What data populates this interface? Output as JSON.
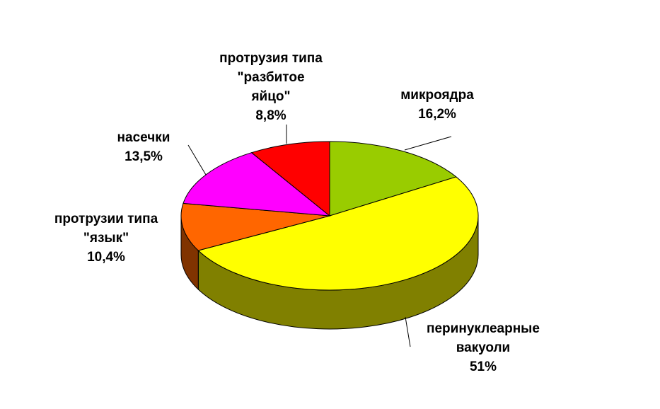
{
  "chart_data": {
    "type": "pie",
    "categories": [
      "микроядра",
      "перинуклеарные\nвакуоли",
      "протрузии типа\n\"язык\"",
      "насечки",
      "протрузия типа\n\"разбитое\nяйцо\""
    ],
    "values": [
      16.2,
      51,
      10.4,
      13.5,
      8.8
    ],
    "value_labels": [
      "16,2%",
      "51%",
      "10,4%",
      "13,5%",
      "8,8%"
    ],
    "colors": [
      "#99cc00",
      "#ffff00",
      "#ff6600",
      "#ff00ff",
      "#ff0000"
    ]
  }
}
